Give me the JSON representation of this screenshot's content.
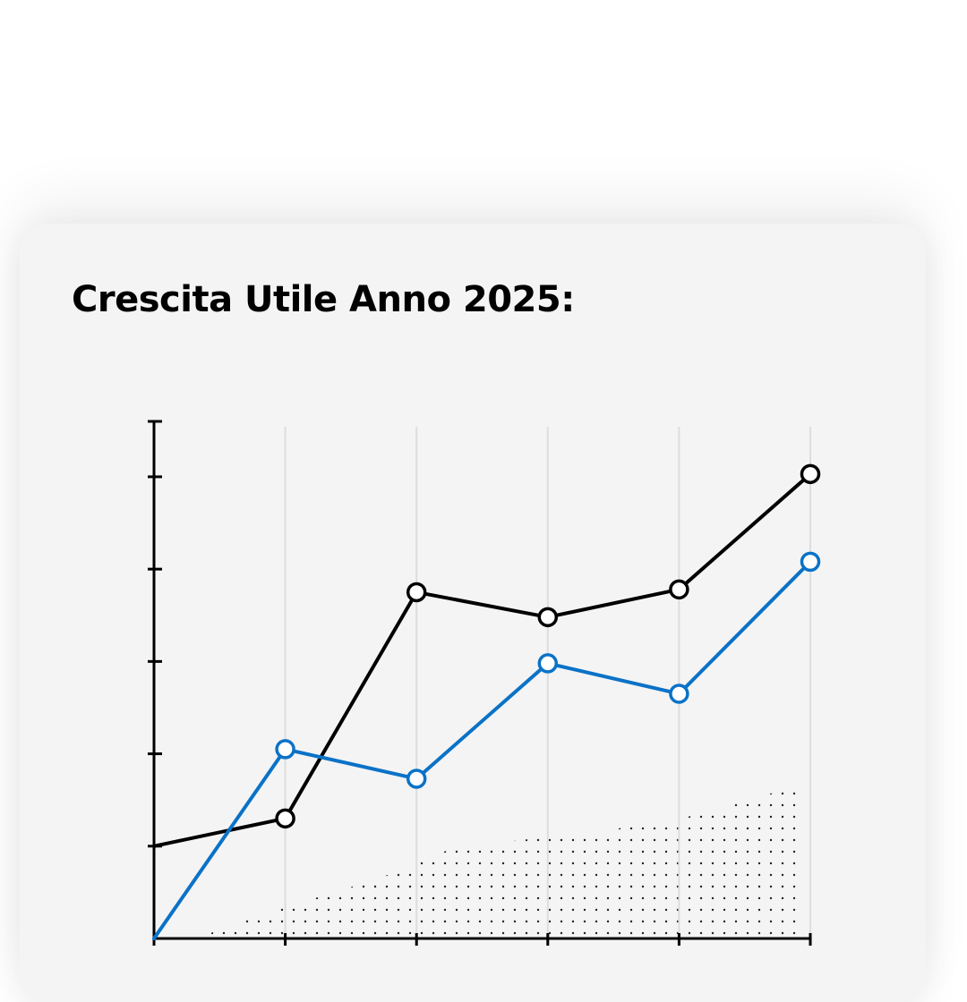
{
  "title": "Crescita Utile Anno 2025:",
  "colors": {
    "card_background": "#f4f4f4",
    "series_black": "#000000",
    "series_blue": "#0a72c7",
    "gridline": "#dddddd"
  },
  "chart_data": {
    "type": "line",
    "title": "Crescita Utile Anno 2025:",
    "xlabel": "",
    "ylabel": "",
    "x": [
      0,
      1,
      2,
      3,
      4,
      5
    ],
    "xlim": [
      0,
      5
    ],
    "ylim": [
      0,
      5.6
    ],
    "y_ticks": [
      1,
      2,
      3,
      4,
      5
    ],
    "grid": "vertical",
    "legend": "none",
    "series": [
      {
        "color": "#000000",
        "values": [
          1.0,
          1.3,
          3.75,
          3.48,
          3.78,
          5.03
        ],
        "markers_from": 1
      },
      {
        "color": "#0a72c7",
        "values": [
          0.0,
          2.05,
          1.73,
          2.98,
          2.65,
          4.08
        ],
        "markers_from": 1
      }
    ],
    "decoration": "dotted-area-texture"
  }
}
